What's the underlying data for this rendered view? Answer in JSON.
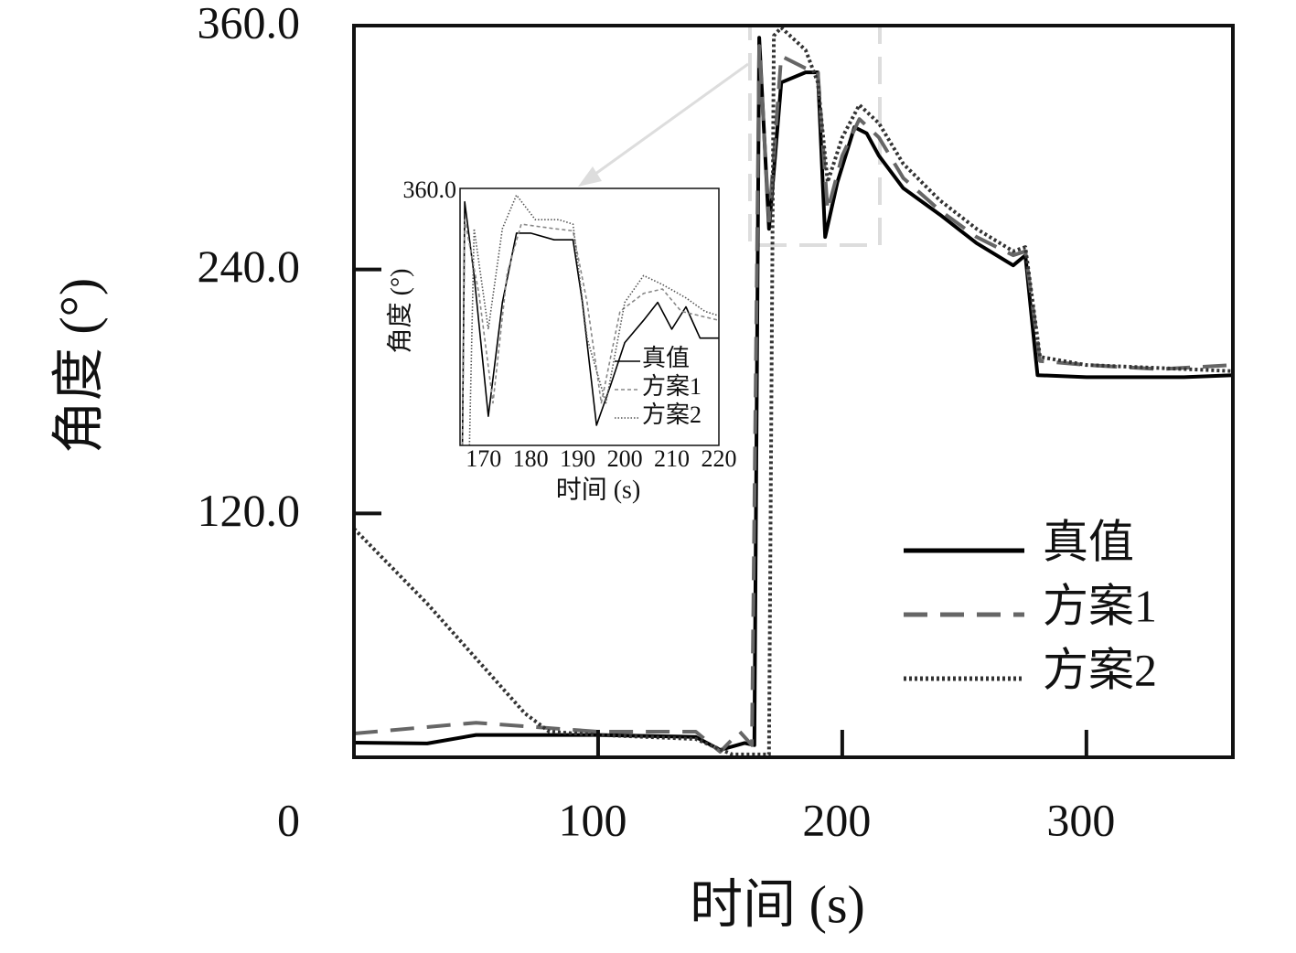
{
  "chart_data": [
    {
      "type": "line",
      "xlabel": "时间 (s)",
      "ylabel": "角度 (°)",
      "xlim": [
        0,
        360
      ],
      "ylim": [
        0,
        360
      ],
      "xticks": [
        100,
        200,
        300
      ],
      "yticks": [
        0,
        {
          "value": 120,
          "label": "120.0"
        },
        {
          "value": 240,
          "label": "240.0"
        },
        {
          "value": 360,
          "label": "360.0"
        }
      ],
      "legend": "lower right",
      "series": [
        {
          "name": "真值",
          "color": "#000000",
          "style": "solid",
          "x": [
            0,
            30,
            50,
            100,
            140,
            150,
            160,
            164,
            166,
            170,
            175,
            185,
            190,
            193,
            198,
            205,
            210,
            215,
            225,
            240,
            255,
            270,
            275,
            280,
            300,
            320,
            340,
            360
          ],
          "values": [
            7.2,
            6.8,
            11,
            11,
            10,
            3.6,
            7,
            6,
            354,
            260,
            332,
            337,
            337,
            256,
            283,
            310,
            307,
            296,
            280,
            267,
            253,
            242,
            247,
            188,
            187,
            187,
            187,
            188
          ]
        },
        {
          "name": "方案1",
          "color": "#666666",
          "style": "dashed",
          "x": [
            0,
            50,
            100,
            140,
            150,
            158,
            163,
            166,
            170,
            175,
            185,
            190,
            194,
            200,
            207,
            215,
            225,
            240,
            255,
            270,
            275,
            281,
            300,
            330,
            360
          ],
          "values": [
            11.7,
            17,
            12.6,
            12.6,
            2.7,
            12.6,
            6,
            350,
            264,
            345,
            339,
            337,
            269,
            296,
            314,
            305,
            285,
            269,
            256,
            247,
            249,
            195,
            193,
            191,
            193
          ]
        },
        {
          "name": "方案2",
          "color": "#333333",
          "style": "dotted",
          "x": [
            0,
            30,
            50,
            70,
            80,
            100,
            140,
            155,
            170,
            172,
            175,
            185,
            190,
            194,
            200,
            207,
            215,
            225,
            240,
            255,
            270,
            275,
            281,
            300,
            360
          ],
          "values": [
            112.5,
            75.6,
            48.6,
            21.6,
            12.6,
            11,
            9,
            1.4,
            1.4,
            355,
            359,
            348,
            332,
            283,
            305,
            321,
            312,
            292,
            274,
            260,
            249,
            251,
            197,
            193,
            190
          ]
        }
      ]
    },
    {
      "type": "line",
      "xlabel": "时间 (s)",
      "ylabel": "角度 (°)",
      "xlim": [
        165,
        220
      ],
      "ylim": [
        245,
        360
      ],
      "xticks": [
        170,
        180,
        190,
        200,
        210,
        220
      ],
      "yticks": [
        {
          "value": 360,
          "label": "360.0"
        }
      ],
      "legend": "lower right",
      "series": [
        {
          "name": "真值",
          "color": "#000000",
          "style": "solid",
          "x": [
            165.5,
            166,
            168,
            171,
            174,
            177,
            180,
            185,
            189,
            191,
            194,
            197,
            200,
            204,
            207,
            210,
            213,
            216,
            220
          ],
          "values": [
            245,
            354,
            321,
            258,
            309,
            340,
            340,
            337,
            337,
            309,
            254,
            272,
            291,
            301,
            309,
            297,
            307,
            293,
            293
          ]
        },
        {
          "name": "方案1",
          "color": "#888888",
          "style": "dashed",
          "x": [
            165.5,
            166,
            169,
            172,
            175,
            178,
            185,
            189,
            192,
            195,
            199,
            204,
            208,
            212,
            216,
            220
          ],
          "values": [
            245,
            346,
            313,
            264,
            322,
            344,
            342,
            341,
            309,
            264,
            305,
            313,
            315,
            305,
            303,
            301
          ]
        },
        {
          "name": "方案2",
          "color": "#555555",
          "style": "dotted",
          "x": [
            167,
            168,
            171,
            174,
            177,
            181,
            186,
            189,
            192,
            196,
            200,
            204,
            208,
            213,
            217,
            220
          ],
          "values": [
            245,
            342,
            297,
            342,
            357,
            346,
            346,
            344,
            293,
            264,
            309,
            321,
            317,
            311,
            305,
            303
          ]
        }
      ]
    }
  ]
}
